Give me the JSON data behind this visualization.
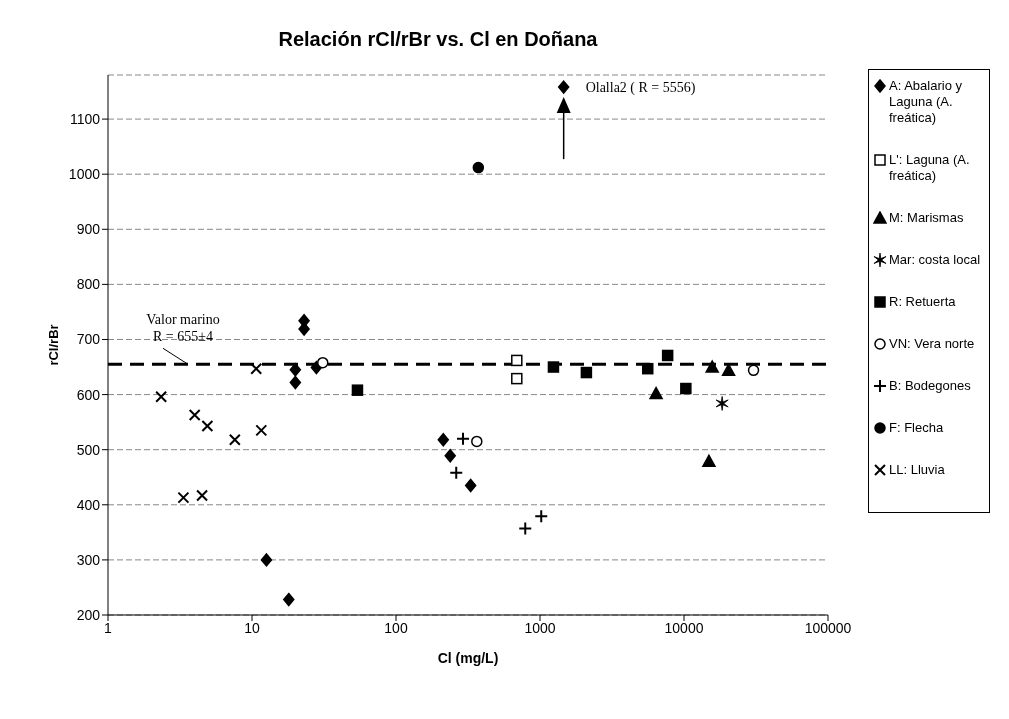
{
  "chart_data": {
    "type": "scatter",
    "title": "Relación rCl/rBr vs. Cl en Doñana",
    "xlabel": "Cl (mg/L)",
    "ylabel": "rCl/rBr",
    "log": "x",
    "xlim": [
      1,
      100000
    ],
    "xticks": [
      1,
      10,
      100,
      1000,
      10000,
      100000
    ],
    "ylim": [
      200,
      1180
    ],
    "yticks": [
      200,
      300,
      400,
      500,
      600,
      700,
      800,
      900,
      1000,
      1100
    ],
    "grid": "y",
    "legend": "right",
    "series": [
      {
        "name": "A: Abalario y Laguna (A. freática)",
        "color": "#000000",
        "marker": "diamond",
        "x": [
          20,
          20,
          23,
          23,
          28,
          12.6,
          18,
          213,
          238,
          330,
          1460
        ],
        "values": [
          622,
          645,
          734,
          719,
          649,
          300,
          228,
          518,
          489,
          435,
          1158
        ]
      },
      {
        "name": "L': Laguna (A. freática)",
        "color": "#ffffff",
        "marker": "square",
        "x": [
          690,
          690
        ],
        "values": [
          662,
          629
        ]
      },
      {
        "name": "M: Marismas",
        "color": "#000000",
        "marker": "triangle",
        "x": [
          6400,
          15700,
          20400,
          14900
        ],
        "values": [
          602,
          650,
          644,
          479
        ]
      },
      {
        "name": "Mar: costa local",
        "color": "#000000",
        "x": [
          18400
        ],
        "values": [
          584
        ]
      },
      {
        "name": "R: Retuerta",
        "color": "#000000",
        "marker": "square",
        "x": [
          54,
          1240,
          2100,
          5600,
          7700,
          10300
        ],
        "values": [
          608,
          650,
          640,
          647,
          671,
          611
        ]
      },
      {
        "name": "VN: Vera norte",
        "color": "#ffffff",
        "marker": "circle",
        "x": [
          31,
          364,
          30400
        ],
        "values": [
          658,
          515,
          644
        ]
      },
      {
        "name": "B: Bodegones",
        "color": "#000000",
        "marker": "cross",
        "x": [
          292,
          262,
          790,
          1020
        ],
        "values": [
          520,
          458,
          357,
          379
        ]
      },
      {
        "name": "F: Flecha",
        "color": "#000000",
        "marker": "circle",
        "x": [
          373
        ],
        "values": [
          1012
        ]
      },
      {
        "name": "LL: Lluvia",
        "color": "#000000",
        "marker": "x",
        "x": [
          2.34,
          4.0,
          4.9,
          7.6,
          11.6,
          3.34,
          4.5,
          10.7
        ],
        "values": [
          596,
          563,
          543,
          518,
          535,
          413,
          417,
          647
        ]
      }
    ],
    "ref_lines": [
      {
        "axis": "y",
        "value": 655,
        "label": "Valor marino\nR = 655±4",
        "color": "#000000",
        "line_style": "dashed"
      }
    ],
    "annotations": [
      {
        "text": "Olalla2 ( R = 5556)",
        "x": 1460,
        "y": 1158
      }
    ]
  }
}
